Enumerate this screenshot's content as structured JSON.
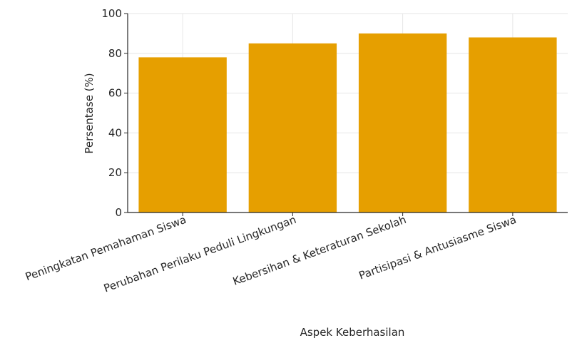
{
  "chart_data": {
    "type": "bar",
    "title": "",
    "categories": [
      "Peningkatan Pemahaman Siswa",
      "Perubahan Perilaku Peduli Lingkungan",
      "Kebersihan & Keteraturan Sekolah",
      "Partisipasi & Antusiasme Siswa"
    ],
    "values": [
      78,
      85,
      90,
      88
    ],
    "xlabel": "Aspek Keberhasilan",
    "ylabel": "Persentase (%)",
    "ylim": [
      0,
      100
    ],
    "yticks": [
      0,
      20,
      40,
      60,
      80,
      100
    ],
    "grid": true,
    "bar_color": "#e69f00"
  }
}
